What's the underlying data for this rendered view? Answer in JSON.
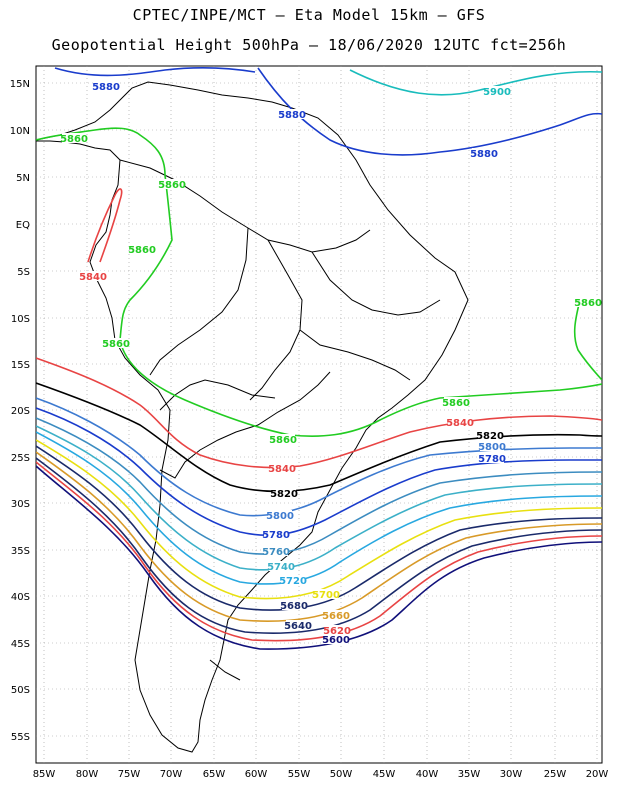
{
  "header": {
    "line1": "CPTEC/INPE/MCT –  Eta Model 15km – GFS",
    "line2": "Geopotential Height 500hPa – 18/06/2020 12UTC fct=256h"
  },
  "axes": {
    "lat_labels": [
      "15N",
      "10N",
      "5N",
      "EQ",
      "5S",
      "10S",
      "15S",
      "20S",
      "25S",
      "30S",
      "35S",
      "40S",
      "45S",
      "50S",
      "55S"
    ],
    "lon_labels": [
      "85W",
      "80W",
      "75W",
      "70W",
      "65W",
      "60W",
      "55W",
      "50W",
      "45W",
      "40W",
      "35W",
      "30W",
      "25W",
      "20W"
    ]
  },
  "contours": [
    {
      "value": "5900",
      "color": "#19bcbc"
    },
    {
      "value": "5880",
      "color": "#1a3ccc"
    },
    {
      "value": "5860",
      "color": "#22cc22"
    },
    {
      "value": "5840",
      "color": "#e84444"
    },
    {
      "value": "5820",
      "color": "#000000"
    },
    {
      "value": "5800",
      "color": "#3d7ad0"
    },
    {
      "value": "5780",
      "color": "#1a3ccc"
    },
    {
      "value": "5760",
      "color": "#3c8cc0"
    },
    {
      "value": "5740",
      "color": "#3cb0c8"
    },
    {
      "value": "5720",
      "color": "#28a8e0"
    },
    {
      "value": "5700",
      "color": "#e8e010"
    },
    {
      "value": "5680",
      "color": "#1a2a6a"
    },
    {
      "value": "5660",
      "color": "#d89a28"
    },
    {
      "value": "5640",
      "color": "#1a2a6a"
    },
    {
      "value": "5620",
      "color": "#e84444"
    },
    {
      "value": "5600",
      "color": "#10107a"
    }
  ]
}
